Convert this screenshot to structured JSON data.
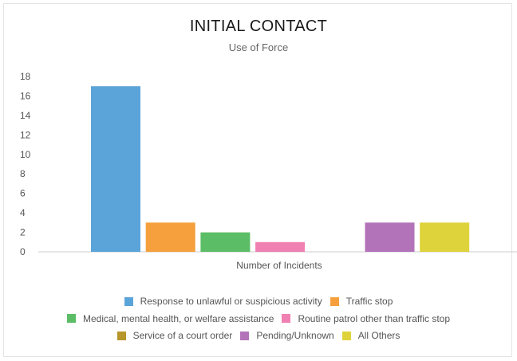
{
  "chart_data": {
    "type": "bar",
    "title": "INITIAL CONTACT",
    "subtitle": "Use of Force",
    "xlabel": "Number of Incidents",
    "ylabel": "",
    "ylim": [
      0,
      18
    ],
    "yticks": [
      "0",
      "2",
      "4",
      "6",
      "8",
      "10",
      "12",
      "14",
      "16",
      "18"
    ],
    "grid": false,
    "legend_position": "bottom",
    "series": [
      {
        "name": "Response to unlawful or suspicious activity",
        "value": 17,
        "color": "#5ba4d9"
      },
      {
        "name": "Traffic stop",
        "value": 3,
        "color": "#f5a03c"
      },
      {
        "name": "Medical, mental health, or welfare assistance",
        "value": 2,
        "color": "#5bbd65"
      },
      {
        "name": "Routine patrol other than traffic stop",
        "value": 1,
        "color": "#f07fb2"
      },
      {
        "name": "Service of a court order",
        "value": 0,
        "color": "#b7962a"
      },
      {
        "name": "Pending/Unknown",
        "value": 3,
        "color": "#b273b8"
      },
      {
        "name": "All Others",
        "value": 3,
        "color": "#dfd33c"
      }
    ],
    "legend_rows": [
      [
        0,
        1
      ],
      [
        2,
        3
      ],
      [
        4,
        5,
        6
      ]
    ]
  }
}
